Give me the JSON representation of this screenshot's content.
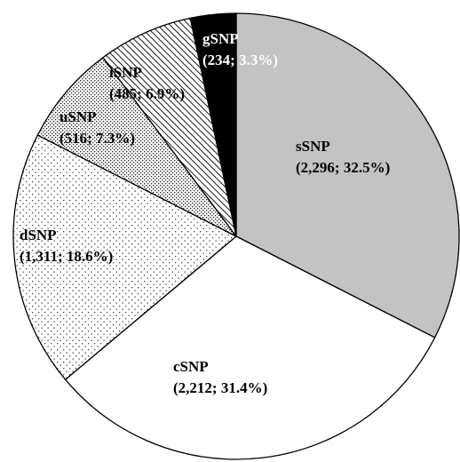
{
  "chart_data": {
    "type": "pie",
    "slices": [
      {
        "name": "sSNP",
        "count": "2,296",
        "percent": 32.5,
        "display": "(2,296; 32.5%)",
        "fill": "#c3c3c3",
        "pattern": "solid",
        "text_color": "#000000"
      },
      {
        "name": "cSNP",
        "count": "2,212",
        "percent": 31.4,
        "display": "(2,212; 31.4%)",
        "fill": "#ffffff",
        "pattern": "solid",
        "text_color": "#000000"
      },
      {
        "name": "dSNP",
        "count": "1,311",
        "percent": 18.6,
        "display": "(1,311; 18.6%)",
        "fill": "#ffffff",
        "pattern": "dots",
        "text_color": "#000000"
      },
      {
        "name": "uSNP",
        "count": "516",
        "percent": 7.3,
        "display": "(516; 7.3%)",
        "fill": "#ffffff",
        "pattern": "dense-dots",
        "text_color": "#000000"
      },
      {
        "name": "iSNP",
        "count": "485",
        "percent": 6.9,
        "display": "(485; 6.9%)",
        "fill": "#ffffff",
        "pattern": "diagonal-lines",
        "text_color": "#000000"
      },
      {
        "name": "gSNP",
        "count": "234",
        "percent": 3.3,
        "display": "(234; 3.3%)",
        "fill": "#000000",
        "pattern": "solid",
        "text_color": "#ffffff"
      }
    ],
    "start": "12 o'clock",
    "direction": "clockwise",
    "legend": "none"
  }
}
